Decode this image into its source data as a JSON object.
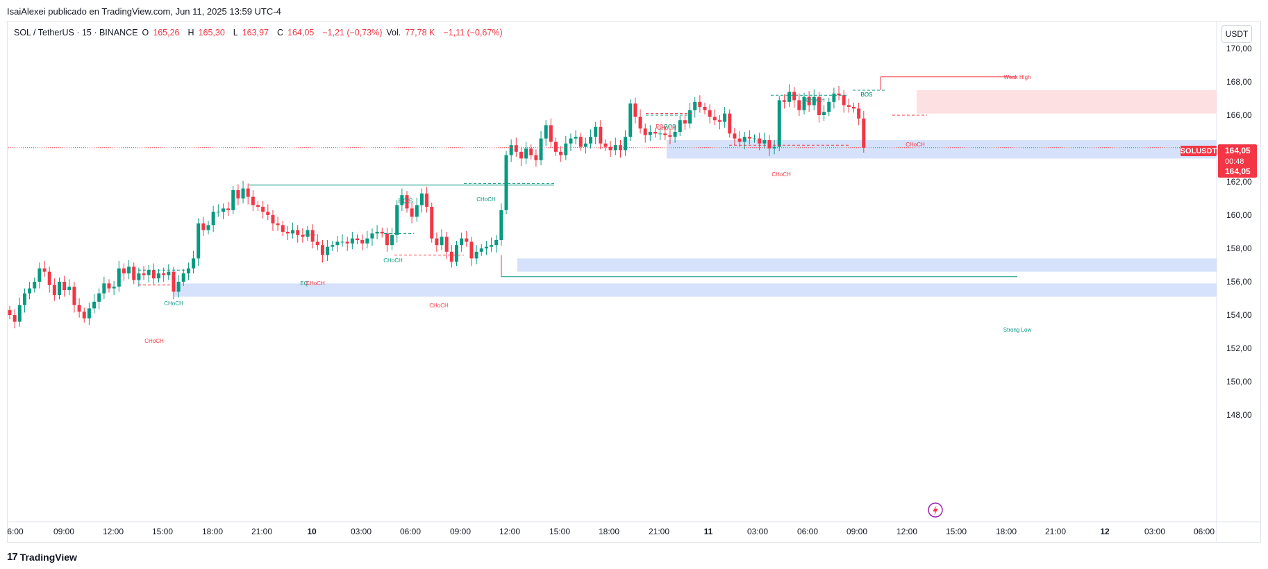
{
  "publisher": "IsaiAlexei publicado en TradingView.com, Jun 11, 2025 13:59 UTC-4",
  "legend": {
    "symbol": "SOL / TetherUS · 15 · BINANCE",
    "o_label": "O",
    "o_value": "165,26",
    "h_label": "H",
    "h_value": "165,30",
    "l_label": "L",
    "l_value": "163,97",
    "c_label": "C",
    "c_value": "164,05",
    "change": "−1,21 (−0,73%)",
    "vol_label": "Vol.",
    "vol_value": "77,78 K",
    "vol_change": "−1,11 (−0,67%)"
  },
  "currency_button": "USDT",
  "footer_brand": "TradingView",
  "colors": {
    "up": "#089981",
    "down": "#f23645",
    "zone_blue": "#d6e2fb",
    "zone_red": "#fde0e1"
  },
  "price_labels": {
    "ticker": "SOLUSDT",
    "last": "164,05",
    "countdown": "00:48",
    "last2": "164,05"
  },
  "chart_data": {
    "type": "candlestick",
    "title": "SOL / TetherUS · 15 · BINANCE",
    "y_ticks": [
      "170,00",
      "168,00",
      "166,00",
      "164,00",
      "162,00",
      "160,00",
      "158,00",
      "156,00",
      "154,00",
      "152,00",
      "150,00",
      "148,00"
    ],
    "x_ticks": [
      "6:00",
      "09:00",
      "12:00",
      "15:00",
      "18:00",
      "21:00",
      "10",
      "03:00",
      "06:00",
      "09:00",
      "12:00",
      "15:00",
      "18:00",
      "21:00",
      "11",
      "03:00",
      "06:00",
      "09:00",
      "12:00",
      "15:00",
      "18:00",
      "21:00",
      "12",
      "03:00",
      "06:00"
    ],
    "ylim": [
      146.5,
      171
    ],
    "close_series": [
      154.0,
      153.6,
      154.6,
      155.3,
      155.6,
      156.0,
      156.8,
      156.6,
      155.8,
      155.2,
      156.0,
      155.5,
      155.7,
      154.6,
      154.2,
      153.8,
      154.4,
      154.8,
      155.3,
      155.9,
      155.6,
      155.7,
      156.8,
      156.5,
      156.9,
      156.1,
      156.5,
      156.4,
      156.7,
      156.2,
      156.5,
      156.4,
      156.6,
      155.4,
      156.0,
      156.5,
      156.8,
      157.4,
      159.5,
      159.1,
      159.4,
      160.2,
      160.2,
      160.4,
      160.3,
      161.5,
      161.0,
      161.6,
      161.1,
      160.6,
      160.5,
      160.2,
      160.0,
      159.5,
      159.4,
      159.0,
      158.9,
      159.1,
      158.8,
      158.7,
      159.1,
      158.4,
      158.2,
      157.6,
      158.1,
      158.2,
      158.4,
      158.4,
      158.3,
      158.6,
      158.5,
      158.3,
      158.6,
      158.9,
      159.0,
      158.9,
      158.2,
      158.8,
      160.6,
      161.2,
      160.4,
      159.9,
      160.6,
      161.3,
      160.5,
      158.6,
      158.2,
      158.7,
      157.8,
      157.2,
      158.2,
      158.6,
      158.4,
      157.4,
      157.8,
      158.0,
      158.1,
      158.2,
      158.5,
      160.3,
      163.6,
      164.2,
      163.8,
      163.4,
      164.0,
      163.6,
      163.3,
      164.6,
      165.4,
      164.4,
      163.8,
      163.6,
      164.3,
      164.6,
      164.7,
      164.1,
      164.3,
      164.7,
      165.3,
      164.3,
      164.1,
      163.9,
      164.2,
      163.9,
      164.7,
      166.7,
      165.9,
      165.2,
      164.8,
      165.0,
      164.9,
      164.9,
      164.8,
      164.7,
      165.0,
      165.7,
      165.5,
      166.3,
      166.8,
      166.5,
      166.3,
      165.9,
      165.7,
      165.6,
      166.1,
      164.9,
      164.6,
      164.4,
      164.7,
      164.6,
      164.6,
      164.3,
      164.5,
      164.0,
      164.1,
      166.9,
      166.8,
      167.4,
      166.9,
      166.3,
      167.1,
      166.6,
      167.1,
      166.0,
      166.2,
      166.8,
      167.3,
      167.2,
      166.6,
      166.5,
      166.4,
      165.8,
      164.05
    ],
    "zones": [
      {
        "kind": "demand",
        "from_price": 155.1,
        "to_price": 155.9
      },
      {
        "kind": "demand",
        "from_price": 156.6,
        "to_price": 157.4
      },
      {
        "kind": "demand",
        "from_price": 163.4,
        "to_price": 164.5
      },
      {
        "kind": "supply",
        "from_price": 166.1,
        "to_price": 167.5
      }
    ],
    "annotations": [
      "BOS",
      "CHoCH",
      "CHoCH",
      "CHoCH",
      "CHoCH",
      "CHoCH",
      "CHoCH",
      "EQ",
      "CHoCH",
      "BOS",
      "EQ",
      "BOS",
      "CHoCH",
      "CHoCH",
      "CHoCH",
      "BOS",
      "Weak High",
      "Strong Low"
    ],
    "weak_high_price": 168.3,
    "strong_low_price": 156.3,
    "current_price": 164.05
  }
}
